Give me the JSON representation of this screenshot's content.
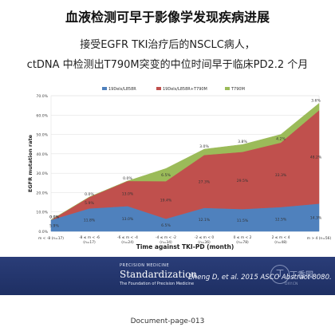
{
  "slide": {
    "title": "血液检测可早于影像学发现疾病进展",
    "subtitle_line1": "接受EGFR TKI治疗后的NSCLC病人，",
    "subtitle_line2": "ctDNA 中检测出T790M突变的中位时间早于临床PD2.2 个月"
  },
  "chart_data": {
    "type": "area",
    "stacked": true,
    "xlabel": "Time against TKI-PD (month)",
    "ylabel": "EGFR mutation rate",
    "ylim": [
      0,
      70
    ],
    "yticks": [
      "0.0%",
      "10.0%",
      "20.0%",
      "30.0%",
      "40.0%",
      "50.0%",
      "60.0%",
      "70.0%"
    ],
    "grid": true,
    "legend_position": "top",
    "categories": [
      "m < -8 (n=17)",
      "-8 ≤ m < -6 (n=17)",
      "-6 ≤ m < -4 (n=24)",
      "-4 ≤ m < -2 (n=34)",
      "-2 ≤ m < 0 (n=36)",
      "0 ≤ m < 2 (n=78)",
      "2 ≤ m < 4 (n=48)",
      "m > 4 (n=56)"
    ],
    "series": [
      {
        "name": "19Dels/L858R",
        "color": "#4f81bd",
        "values": [
          5.9,
          11.8,
          13.0,
          6.5,
          12.1,
          11.5,
          12.5,
          14.3
        ],
        "labels": [
          "5.9%",
          "11.8%",
          "13.0%",
          "6.5%",
          "12.1%",
          "11.5%",
          "12.5%",
          "14.3%"
        ]
      },
      {
        "name": "19Dels/L858R+T790M",
        "color": "#c0504d",
        "values": [
          0.0,
          5.9,
          13.0,
          19.4,
          27.3,
          29.5,
          33.3,
          48.2
        ],
        "labels": [
          "0.0%",
          "5.9%",
          "13.0%",
          "19.4%",
          "27.3%",
          "29.5%",
          "33.3%",
          "48.2%"
        ]
      },
      {
        "name": "T790M",
        "color": "#9bbb59",
        "values": [
          0.0,
          0.0,
          0.0,
          6.5,
          3.0,
          3.8,
          4.2,
          3.6
        ],
        "labels": [
          "0.0%",
          "0.0%",
          "0.0%",
          "6.5%",
          "3.0%",
          "3.8%",
          "4.2%",
          "3.6%"
        ]
      }
    ]
  },
  "banner": {
    "logo_small_top": "PRECISION MEDICINE",
    "logo_main": "Standardization",
    "logo_small_bottom": "The Foundation of Precision Medicine",
    "citation": "Zheng D, et al. 2015 ASCO Abstract 8080."
  },
  "watermark": {
    "glyph": "丁",
    "text": "丁香园",
    "sub": "DXY.CN"
  },
  "footer": {
    "caption": "Document-page-013"
  }
}
